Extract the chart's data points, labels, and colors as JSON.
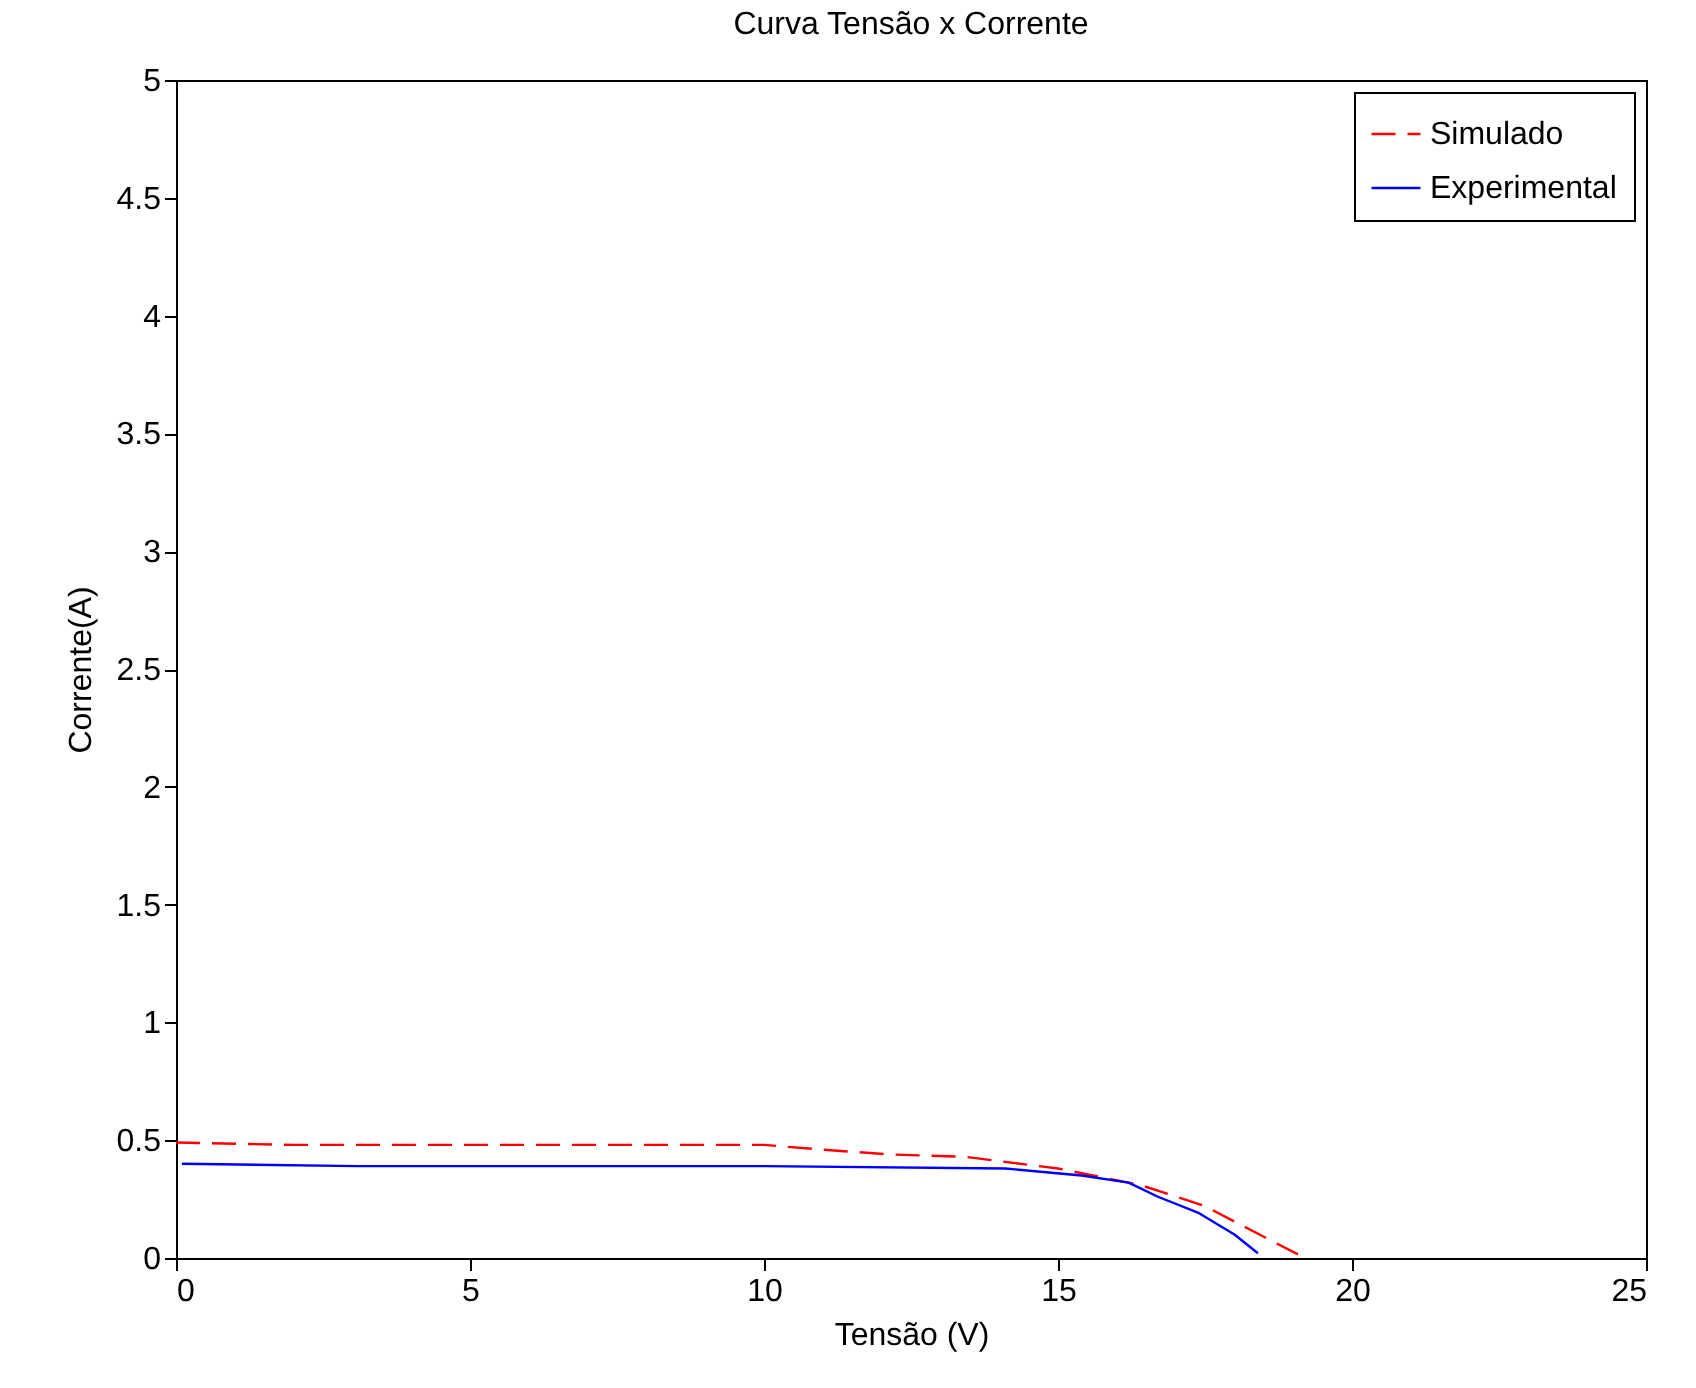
{
  "chart_data": {
    "type": "line",
    "title": "Curva Tensão x Corrente",
    "xlabel": "Tensão (V)",
    "ylabel": "Corrente(A)",
    "xlim": [
      0,
      25
    ],
    "ylim": [
      0,
      5
    ],
    "xticks": [
      0,
      5,
      10,
      15,
      20,
      25
    ],
    "yticks": [
      0,
      0.5,
      1,
      1.5,
      2,
      2.5,
      3,
      3.5,
      4,
      4.5,
      5
    ],
    "grid": false,
    "legend": "top right",
    "marker": "none",
    "series": [
      {
        "name": "Simulado",
        "color": "#ff0000",
        "line_style": "dashed",
        "x": [
          0,
          2,
          4,
          6,
          8,
          10,
          11,
          12.1,
          13.4,
          15,
          16.4,
          17.5,
          18.5,
          19.2
        ],
        "values": [
          0.49,
          0.48,
          0.48,
          0.48,
          0.48,
          0.48,
          0.46,
          0.44,
          0.43,
          0.38,
          0.31,
          0.22,
          0.09,
          0
        ]
      },
      {
        "name": "Experimental",
        "color": "#0000ff",
        "line_style": "solid",
        "x": [
          0.1,
          3.1,
          5,
          8,
          10,
          14.1,
          15.4,
          16.2,
          16.7,
          17.4,
          18,
          18.4
        ],
        "values": [
          0.4,
          0.39,
          0.39,
          0.39,
          0.39,
          0.38,
          0.35,
          0.32,
          0.26,
          0.19,
          0.1,
          0.02
        ]
      }
    ]
  }
}
